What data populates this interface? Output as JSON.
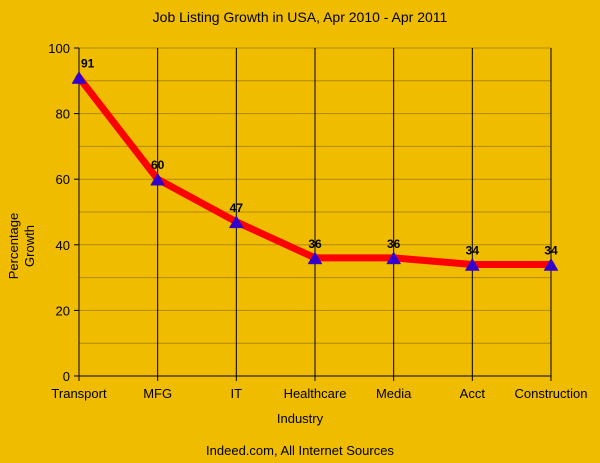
{
  "chart_data": {
    "type": "line",
    "title": "Job Listing Growth in USA, Apr 2010 - Apr 2011",
    "categories": [
      "Transport",
      "MFG",
      "IT",
      "Healthcare",
      "Media",
      "Acct",
      "Construction"
    ],
    "series": [
      {
        "name": "Percentage Growth",
        "values": [
          91,
          60,
          47,
          36,
          36,
          34,
          34
        ]
      }
    ],
    "xlabel": "Industry",
    "ylabel_lines": [
      "Percentage",
      "Growth"
    ],
    "ylim": [
      0,
      100
    ],
    "yticks": [
      0,
      20,
      40,
      60,
      80,
      100
    ],
    "grid": true,
    "source": "Indeed.com, All Internet Sources",
    "colors": {
      "background": "#efbc00",
      "line": "#ff0000",
      "marker": "#3300cc",
      "grid_vertical": "#000000",
      "grid_horizontal": "#b08a00"
    }
  }
}
